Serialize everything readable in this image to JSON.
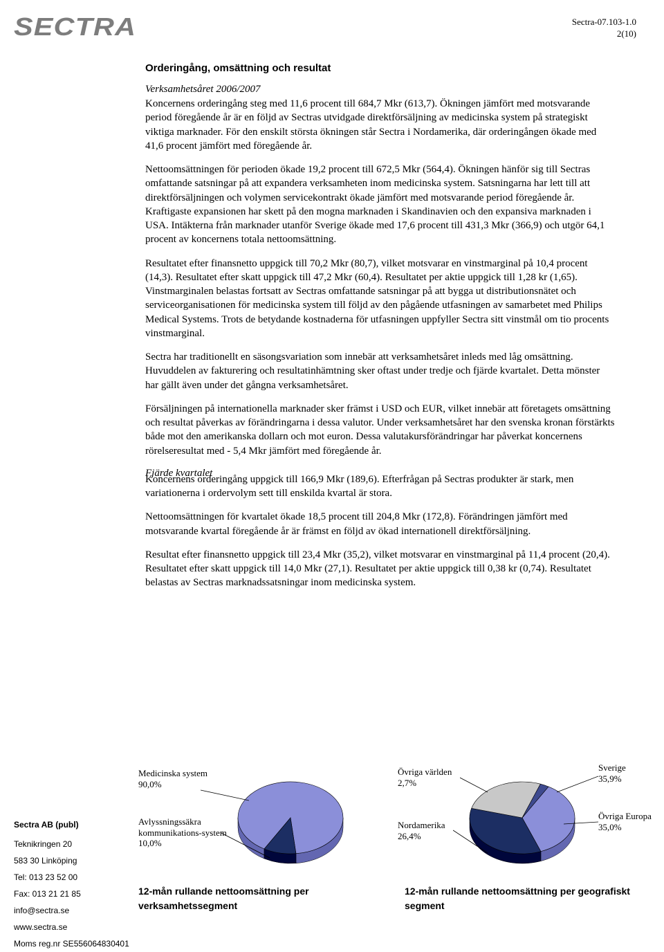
{
  "header": {
    "doc_id": "Sectra-07.103-1.0",
    "page_num": "2(10)"
  },
  "logo_text": "SECTRA",
  "content": {
    "title": "Orderingång, omsättning och resultat",
    "year_heading": "Verksamhetsåret 2006/2007",
    "p1": "Koncernens orderingång steg med 11,6 procent till 684,7 Mkr (613,7). Ökningen jämfört med motsvarande period föregående år är en följd av Sectras utvidgade direktförsäljning av medicinska system på strategiskt viktiga marknader. För den enskilt största ökningen står Sectra i Nordamerika, där orderingången ökade med 41,6 procent jämfört med föregående år.",
    "p2": "Nettoomsättningen för perioden ökade 19,2 procent till 672,5 Mkr (564,4). Ökningen hänför sig till Sectras omfattande satsningar på att expandera verksamheten inom medicinska system. Satsningarna har lett till att direktförsäljningen och volymen servicekontrakt ökade jämfört med motsvarande period föregående år. Kraftigaste expansionen har skett på den mogna marknaden i Skandinavien och den expansiva marknaden i USA. Intäkterna från marknader utanför Sverige ökade med 17,6 procent till 431,3 Mkr (366,9) och utgör 64,1 procent av koncernens totala nettoomsättning.",
    "p3": "Resultatet efter finansnetto uppgick till 70,2 Mkr (80,7), vilket motsvarar en vinstmarginal på 10,4 procent (14,3). Resultatet efter skatt uppgick till 47,2 Mkr (60,4). Resultatet per aktie uppgick till 1,28 kr (1,65). Vinstmarginalen belastas fortsatt av Sectras omfattande satsningar på att bygga ut distributionsnätet och serviceorganisationen för medicinska system till följd av den pågående utfasningen av samarbetet med Philips Medical Systems. Trots de betydande kostnaderna för utfasningen uppfyller Sectra sitt vinstmål om tio procents vinstmarginal.",
    "p4": "Sectra har traditionellt en säsongsvariation som innebär att verksamhetsåret inleds med låg omsättning. Huvuddelen av fakturering och resultatinhämtning sker oftast under tredje och fjärde kvartalet. Detta mönster har gällt även under det gångna verksamhetsåret.",
    "p5": "Försäljningen på internationella marknader sker främst i USD och EUR, vilket innebär att företagets omsättning och resultat påverkas av förändringarna i dessa valutor. Under verksamhetsåret har den svenska kronan förstärkts både mot den amerikanska dollarn och mot euron. Dessa valutakursförändringar har påverkat koncernens rörelseresultat med - 5,4 Mkr jämfört med föregående år.",
    "q_heading": "Fjärde kvartalet",
    "p6": "Koncernens orderingång uppgick till 166,9 Mkr (189,6). Efterfrågan på Sectras produkter är stark, men variationerna i ordervolym sett till enskilda kvartal är stora.",
    "p7": "Nettoomsättningen för kvartalet ökade 18,5 procent till 204,8 Mkr (172,8). Förändringen jämfört med motsvarande kvartal föregående år är främst en följd av ökad internationell direktförsäljning.",
    "p8": "Resultat efter finansnetto uppgick till 23,4 Mkr (35,2), vilket motsvarar en vinstmarginal på 11,4 procent (20,4). Resultatet efter skatt uppgick till 14,0 Mkr (27,1). Resultatet per aktie uppgick till 0,38 kr (0,74). Resultatet belastas av Sectras marknadssatsningar inom medicinska system."
  },
  "chart1": {
    "type": "pie",
    "title": "12-mån rullande nettoomsättning per verksamhetssegment",
    "slices": [
      {
        "label": "Medicinska system",
        "value": 90.0,
        "percent_text": "90,0%",
        "color": "#8b8fd9"
      },
      {
        "label": "Avlyssningssäkra kommunikations-system",
        "value": 10.0,
        "percent_text": "10,0%",
        "color": "#1c2e63"
      }
    ],
    "background": "#ffffff",
    "border": "#000000",
    "label_fontsize": 13
  },
  "chart2": {
    "type": "pie",
    "title": "12-mån rullande nettoomsättning per geografiskt segment",
    "slices": [
      {
        "label": "Sverige",
        "value": 35.9,
        "percent_text": "35,9%",
        "color": "#8b8fd9"
      },
      {
        "label": "Övriga Europa",
        "value": 35.0,
        "percent_text": "35,0%",
        "color": "#1c2e63"
      },
      {
        "label": "Nordamerika",
        "value": 26.4,
        "percent_text": "26,4%",
        "color": "#c8c8c8"
      },
      {
        "label": "Övriga världen",
        "value": 2.7,
        "percent_text": "2,7%",
        "color": "#3e4a8f"
      }
    ],
    "background": "#ffffff",
    "border": "#000000",
    "label_fontsize": 13
  },
  "sidebar": {
    "company": "Sectra AB (publ)",
    "lines": [
      "Teknikringen 20",
      "583 30 Linköping",
      "Tel: 013 23 52 00",
      "Fax: 013 21 21 85",
      "info@sectra.se",
      "www.sectra.se",
      "Moms reg.nr SE556064830401"
    ]
  }
}
